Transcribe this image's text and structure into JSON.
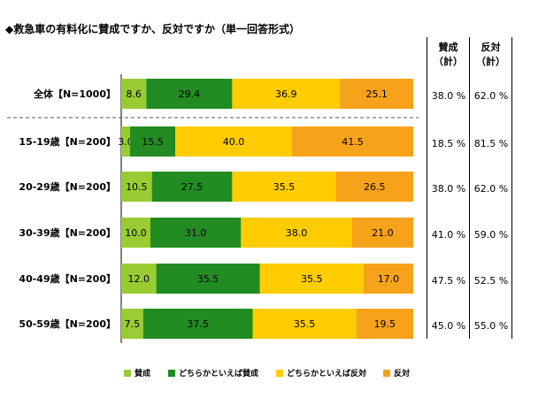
{
  "title": "◆救急車の有料化に賛成ですか、反対ですか（単一回答形式）",
  "columns": {
    "support_total_line1": "賛成",
    "support_total_line2": "（計）",
    "oppose_total_line1": "反対",
    "oppose_total_line2": "（計）"
  },
  "summary_rows": [
    {
      "support": "38.0 %",
      "oppose": "62.0 %"
    },
    {
      "support": "18.5 %",
      "oppose": "81.5 %"
    },
    {
      "support": "38.0 %",
      "oppose": "62.0 %"
    },
    {
      "support": "41.0 %",
      "oppose": "59.0 %"
    },
    {
      "support": "47.5 %",
      "oppose": "52.5 %"
    },
    {
      "support": "45.0 %",
      "oppose": "55.0 %"
    }
  ],
  "chart_data": {
    "type": "bar",
    "stacked": true,
    "orientation": "horizontal",
    "percent": true,
    "categories": [
      "全体【N=1000】",
      "15-19歳【N=200】",
      "20-29歳【N=200】",
      "30-39歳【N=200】",
      "40-49歳【N=200】",
      "50-59歳【N=200】"
    ],
    "series": [
      {
        "name": "賛成",
        "color": "#99cc33",
        "values": [
          8.6,
          3.0,
          10.5,
          10.0,
          12.0,
          7.5
        ]
      },
      {
        "name": "どちらかといえば賛成",
        "color": "#228b22",
        "values": [
          29.4,
          15.5,
          27.5,
          31.0,
          35.5,
          37.5
        ]
      },
      {
        "name": "どちらかといえば反対",
        "color": "#ffcc00",
        "values": [
          36.9,
          40.0,
          35.5,
          38.0,
          35.5,
          35.5
        ]
      },
      {
        "name": "反対",
        "color": "#f7a21b",
        "values": [
          25.1,
          41.5,
          26.5,
          21.0,
          17.0,
          19.5
        ]
      }
    ],
    "xlim": [
      0,
      100
    ],
    "grid": false,
    "legend": "bottom"
  }
}
